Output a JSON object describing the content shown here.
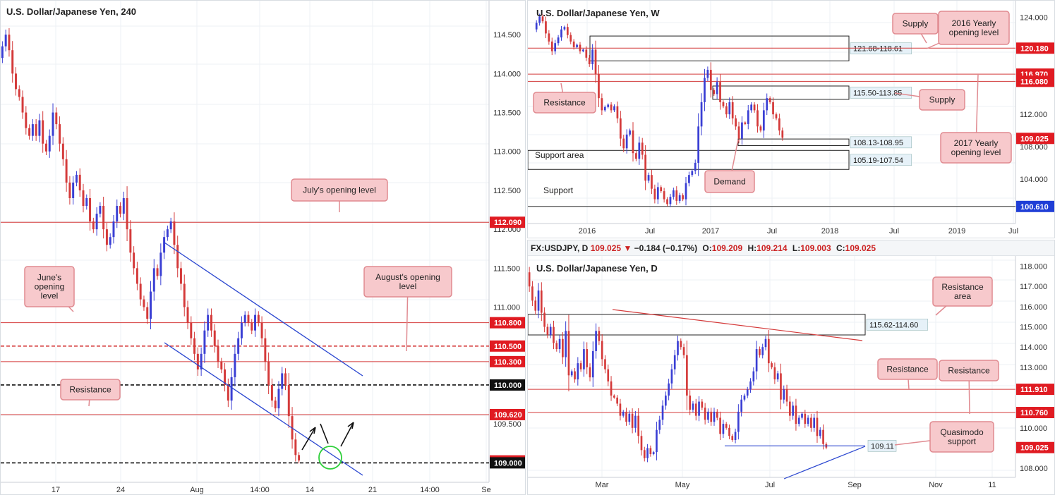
{
  "colors": {
    "bull": "#3a3fd4",
    "bear": "#d43a3a",
    "level": "#d43a3a",
    "channel": "#2a46d0",
    "badge_red": "#e01b22",
    "badge_black": "#111111",
    "badge_blue": "#1f3ed6",
    "callout_bg": "#f7c9cc",
    "callout_border": "#e08a90",
    "zone_label_bg": "#e6f1f8",
    "circle": "#2fcf3a"
  },
  "chart_data": [
    {
      "id": "h4",
      "type": "candlestick",
      "title": "U.S. Dollar/Japanese Yen, 240",
      "x_ticks": [
        "17",
        "24",
        "Aug",
        "14:00",
        "14",
        "21",
        "14:00",
        "Se"
      ],
      "y_ticks": [
        "114.500",
        "114.000",
        "113.500",
        "113.000",
        "112.500",
        "112.000",
        "111.500",
        "111.000",
        "109.500"
      ],
      "ylim": [
        108.75,
        114.8
      ],
      "levels": [
        {
          "price": 112.09,
          "label": "112.090",
          "style": "solid",
          "badge": "red"
        },
        {
          "price": 110.8,
          "label": "110.800",
          "style": "solid",
          "badge": "red"
        },
        {
          "price": 110.5,
          "label": "110.500",
          "style": "dashed",
          "badge": "red"
        },
        {
          "price": 110.3,
          "label": "110.300",
          "style": "solid",
          "badge": "red"
        },
        {
          "price": 110.0,
          "label": "110.000",
          "style": "dashed-black",
          "badge": "black"
        },
        {
          "price": 109.62,
          "label": "109.620",
          "style": "solid",
          "badge": "red"
        },
        {
          "price": 109.025,
          "label": "109.025",
          "style": "none",
          "badge": "red"
        },
        {
          "price": 109.0,
          "label": "109.000",
          "style": "dashed-black",
          "badge": "black"
        }
      ],
      "annotations": [
        "July's opening level",
        "June's opening level",
        "August's opening level",
        "Resistance"
      ],
      "closes": [
        114.35,
        114.5,
        114.3,
        114.0,
        113.8,
        113.7,
        113.5,
        113.3,
        113.2,
        113.35,
        113.2,
        113.4,
        113.1,
        113.0,
        113.2,
        113.5,
        113.35,
        113.1,
        112.9,
        112.6,
        112.4,
        112.6,
        112.7,
        112.5,
        112.3,
        112.4,
        112.1,
        112.0,
        112.2,
        112.3,
        112.0,
        111.8,
        111.9,
        112.1,
        112.3,
        112.2,
        112.4,
        112.0,
        111.7,
        111.5,
        111.3,
        111.1,
        111.0,
        110.85,
        111.2,
        111.5,
        111.4,
        111.7,
        111.9,
        112.0,
        112.1,
        111.8,
        111.5,
        111.3,
        111.0,
        110.8,
        110.6,
        110.4,
        110.2,
        110.4,
        110.7,
        110.9,
        110.7,
        110.5,
        110.3,
        110.2,
        110.0,
        109.8,
        110.1,
        110.4,
        110.6,
        110.8,
        110.9,
        110.8,
        110.7,
        110.9,
        110.8,
        110.6,
        110.3,
        110.0,
        109.8,
        109.7,
        109.95,
        110.15,
        110.0,
        109.6,
        109.3,
        109.1,
        109.03
      ]
    },
    {
      "id": "weekly",
      "type": "candlestick",
      "title": "U.S. Dollar/Japanese Yen, W",
      "x_ticks": [
        "2016",
        "Jul",
        "2017",
        "Jul",
        "2018",
        "Jul",
        "2019",
        "Jul"
      ],
      "y_ticks": [
        "124.000",
        "112.000",
        "108.000",
        "104.000"
      ],
      "ylim": [
        98.5,
        125.0
      ],
      "levels": [
        {
          "price": 120.18,
          "label": "120.180",
          "style": "solid",
          "badge": "red"
        },
        {
          "price": 116.97,
          "label": "116.970",
          "style": "solid",
          "badge": "red"
        },
        {
          "price": 116.08,
          "label": "116.080",
          "style": "solid",
          "badge": "red"
        },
        {
          "price": 109.025,
          "label": "109.025",
          "style": "none",
          "badge": "red"
        },
        {
          "price": 100.61,
          "label": "100.610",
          "style": "solid-black",
          "badge": "blue"
        }
      ],
      "zones": [
        {
          "hi": 121.68,
          "lo": 118.61,
          "label": "121.68-118.61"
        },
        {
          "hi": 115.5,
          "lo": 113.85,
          "label": "115.50-113.85"
        },
        {
          "hi": 108.95,
          "lo": 108.13,
          "label": "108.13-108.95"
        },
        {
          "hi": 107.54,
          "lo": 105.19,
          "label": "105.19-107.54"
        }
      ],
      "annotations": [
        "Supply",
        "2016 Yearly opening level",
        "Resistance",
        "Supply",
        "2017 Yearly opening level",
        "Demand",
        "Support area",
        "Support"
      ],
      "closes": [
        123.3,
        124.1,
        123.5,
        122.0,
        121.0,
        119.8,
        120.8,
        121.5,
        122.5,
        122.8,
        121.8,
        121.0,
        120.3,
        120.6,
        119.8,
        120.0,
        119.0,
        118.2,
        120.0,
        117.0,
        114.0,
        112.5,
        112.9,
        113.2,
        112.5,
        113.0,
        111.5,
        109.0,
        107.8,
        109.5,
        110.0,
        107.2,
        106.5,
        108.5,
        107.0,
        103.8,
        104.5,
        102.8,
        101.5,
        103.0,
        102.5,
        101.5,
        100.9,
        101.8,
        102.6,
        101.3,
        102.0,
        101.5,
        103.5,
        104.5,
        105.0,
        106.0,
        110.5,
        113.5,
        116.5,
        117.5,
        115.0,
        114.5,
        116.0,
        113.5,
        113.0,
        112.0,
        113.5,
        111.5,
        110.5,
        109.0,
        111.0,
        110.8,
        112.5,
        113.2,
        112.5,
        110.5,
        110.0,
        112.5,
        114.0,
        113.5,
        112.0,
        111.5,
        110.0,
        109.1
      ]
    },
    {
      "id": "daily",
      "type": "candlestick",
      "title": "U.S. Dollar/Japanese Yen, D",
      "header": {
        "symbol": "FX:USDJPY, D",
        "price": "109.025",
        "change": "−0.184 (−0.17%)",
        "o_label": "O:",
        "o": "109.209",
        "h_label": "H:",
        "h": "109.214",
        "l_label": "L:",
        "l": "109.003",
        "c_label": "C:",
        "c": "109.025"
      },
      "x_ticks": [
        "Mar",
        "May",
        "Jul",
        "Sep",
        "Nov",
        "11"
      ],
      "y_ticks": [
        "118.000",
        "117.000",
        "116.000",
        "115.000",
        "114.000",
        "113.000",
        "112.000",
        "110.000",
        "108.000"
      ],
      "ylim": [
        107.55,
        118.3
      ],
      "levels": [
        {
          "price": 111.91,
          "label": "111.910",
          "style": "solid",
          "badge": "red"
        },
        {
          "price": 110.76,
          "label": "110.760",
          "style": "solid",
          "badge": "red"
        },
        {
          "price": 109.025,
          "label": "109.025",
          "style": "none",
          "badge": "red"
        }
      ],
      "zones": [
        {
          "hi": 115.62,
          "lo": 114.6,
          "label": "115.62-114.60"
        }
      ],
      "qm_level": {
        "price": 109.11,
        "label": "109.11"
      },
      "annotations": [
        "Resistance area",
        "Resistance",
        "Resistance",
        "Quasimodo support"
      ],
      "closes": [
        117.0,
        116.3,
        115.8,
        116.8,
        115.7,
        115.0,
        114.6,
        115.0,
        114.2,
        113.9,
        114.4,
        113.5,
        114.8,
        112.6,
        112.8,
        112.4,
        113.2,
        112.9,
        113.9,
        113.0,
        112.5,
        113.8,
        114.8,
        114.3,
        113.4,
        112.9,
        112.3,
        111.6,
        111.5,
        111.2,
        110.6,
        110.8,
        110.3,
        110.7,
        110.0,
        110.6,
        109.6,
        108.9,
        108.5,
        109.0,
        108.7,
        108.8,
        109.9,
        110.4,
        111.1,
        111.6,
        112.2,
        112.9,
        113.6,
        114.3,
        114.0,
        113.6,
        111.6,
        110.9,
        111.2,
        110.6,
        111.3,
        111.0,
        110.4,
        110.8,
        110.3,
        110.8,
        110.5,
        109.7,
        110.2,
        110.0,
        109.6,
        109.4,
        109.8,
        110.8,
        111.4,
        111.6,
        111.9,
        112.3,
        112.8,
        113.9,
        113.6,
        114.0,
        114.4,
        113.2,
        113.0,
        112.4,
        112.7,
        111.4,
        111.9,
        111.3,
        110.6,
        111.1,
        110.2,
        110.5,
        110.7,
        110.2,
        110.5,
        110.0,
        110.5,
        109.6,
        109.9,
        109.2,
        109.025
      ]
    }
  ]
}
